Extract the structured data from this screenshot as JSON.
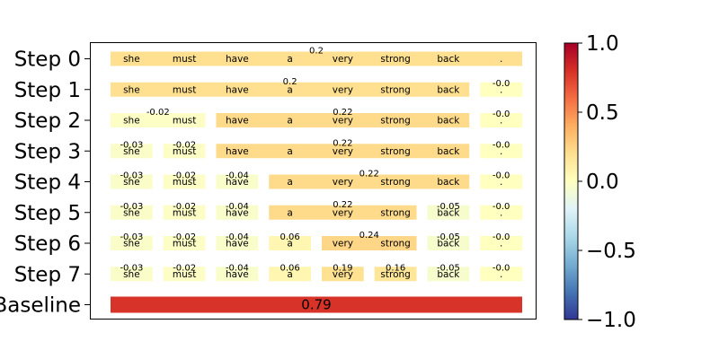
{
  "chart_data": {
    "type": "heatmap",
    "tokens": [
      "she",
      "must",
      "have",
      "a",
      "very",
      "strong",
      "back",
      "."
    ],
    "rows": [
      {
        "label": "Step 0",
        "segments": [
          {
            "start": 0,
            "end": 7,
            "value": 0.2,
            "text": "0.2"
          }
        ]
      },
      {
        "label": "Step 1",
        "segments": [
          {
            "start": 0,
            "end": 6,
            "value": 0.2,
            "text": "0.2"
          },
          {
            "start": 7,
            "end": 7,
            "value": 0.0,
            "text": "-0.0"
          }
        ]
      },
      {
        "label": "Step 2",
        "segments": [
          {
            "start": 0,
            "end": 1,
            "value": -0.02,
            "text": "-0.02"
          },
          {
            "start": 2,
            "end": 6,
            "value": 0.22,
            "text": "0.22"
          },
          {
            "start": 7,
            "end": 7,
            "value": 0.0,
            "text": "-0.0"
          }
        ]
      },
      {
        "label": "Step 3",
        "segments": [
          {
            "start": 0,
            "end": 0,
            "value": -0.03,
            "text": "-0.03"
          },
          {
            "start": 1,
            "end": 1,
            "value": -0.02,
            "text": "-0.02"
          },
          {
            "start": 2,
            "end": 6,
            "value": 0.22,
            "text": "0.22"
          },
          {
            "start": 7,
            "end": 7,
            "value": 0.0,
            "text": "-0.0"
          }
        ]
      },
      {
        "label": "Step 4",
        "segments": [
          {
            "start": 0,
            "end": 0,
            "value": -0.03,
            "text": "-0.03"
          },
          {
            "start": 1,
            "end": 1,
            "value": -0.02,
            "text": "-0.02"
          },
          {
            "start": 2,
            "end": 2,
            "value": -0.04,
            "text": "-0.04"
          },
          {
            "start": 3,
            "end": 6,
            "value": 0.22,
            "text": "0.22"
          },
          {
            "start": 7,
            "end": 7,
            "value": 0.0,
            "text": "-0.0"
          }
        ]
      },
      {
        "label": "Step 5",
        "segments": [
          {
            "start": 0,
            "end": 0,
            "value": -0.03,
            "text": "-0.03"
          },
          {
            "start": 1,
            "end": 1,
            "value": -0.02,
            "text": "-0.02"
          },
          {
            "start": 2,
            "end": 2,
            "value": -0.04,
            "text": "-0.04"
          },
          {
            "start": 3,
            "end": 5,
            "value": 0.22,
            "text": "0.22"
          },
          {
            "start": 6,
            "end": 6,
            "value": -0.05,
            "text": "-0.05"
          },
          {
            "start": 7,
            "end": 7,
            "value": 0.0,
            "text": "-0.0"
          }
        ]
      },
      {
        "label": "Step 6",
        "segments": [
          {
            "start": 0,
            "end": 0,
            "value": -0.03,
            "text": "-0.03"
          },
          {
            "start": 1,
            "end": 1,
            "value": -0.02,
            "text": "-0.02"
          },
          {
            "start": 2,
            "end": 2,
            "value": -0.04,
            "text": "-0.04"
          },
          {
            "start": 3,
            "end": 3,
            "value": 0.06,
            "text": "0.06"
          },
          {
            "start": 4,
            "end": 5,
            "value": 0.24,
            "text": "0.24"
          },
          {
            "start": 6,
            "end": 6,
            "value": -0.05,
            "text": "-0.05"
          },
          {
            "start": 7,
            "end": 7,
            "value": 0.0,
            "text": "-0.0"
          }
        ]
      },
      {
        "label": "Step 7",
        "segments": [
          {
            "start": 0,
            "end": 0,
            "value": -0.03,
            "text": "-0.03"
          },
          {
            "start": 1,
            "end": 1,
            "value": -0.02,
            "text": "-0.02"
          },
          {
            "start": 2,
            "end": 2,
            "value": -0.04,
            "text": "-0.04"
          },
          {
            "start": 3,
            "end": 3,
            "value": 0.06,
            "text": "0.06"
          },
          {
            "start": 4,
            "end": 4,
            "value": 0.19,
            "text": "0.19"
          },
          {
            "start": 5,
            "end": 5,
            "value": 0.16,
            "text": "0.16"
          },
          {
            "start": 6,
            "end": 6,
            "value": -0.05,
            "text": "-0.05"
          },
          {
            "start": 7,
            "end": 7,
            "value": 0.0,
            "text": "-0.0"
          }
        ]
      }
    ],
    "baseline": {
      "label": "Baseline",
      "value": 0.79,
      "text": "0.79"
    },
    "colorbar": {
      "colormap": "RdYlBu_r",
      "range": [
        -1.0,
        1.0
      ],
      "ticks": [
        "1.0",
        "0.5",
        "0.0",
        "−0.5",
        "−1.0"
      ]
    }
  }
}
